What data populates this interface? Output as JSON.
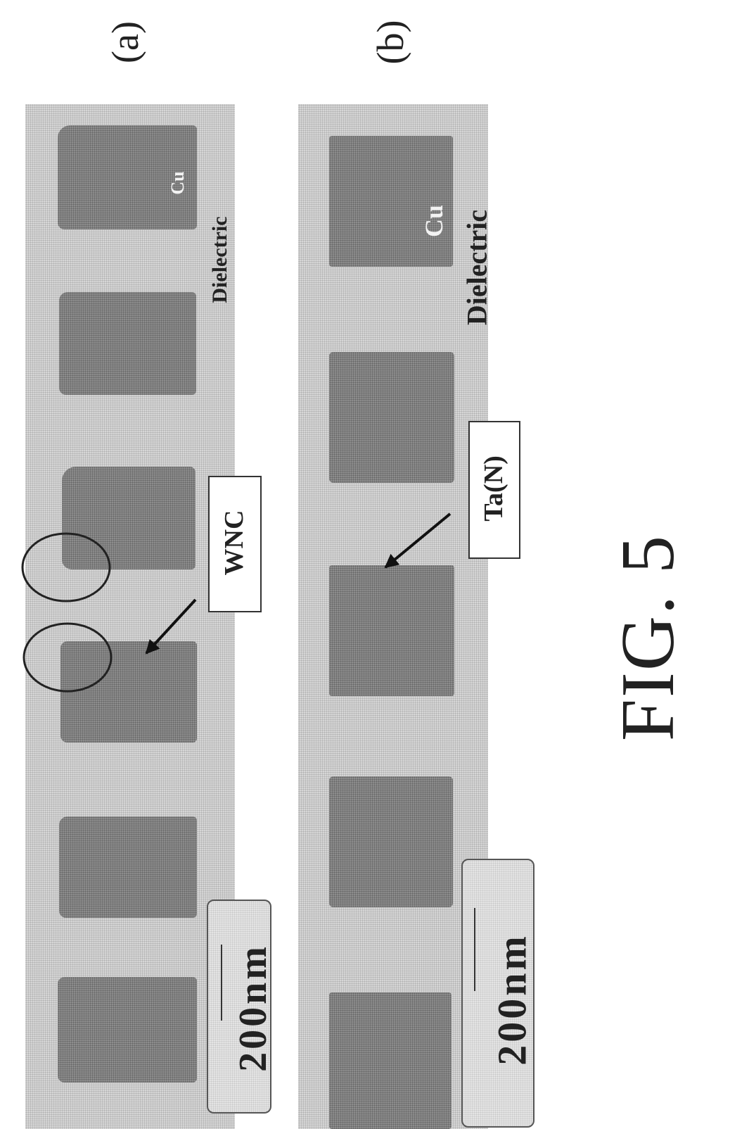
{
  "figure_title": "FIG. 5",
  "panels": [
    {
      "id": "a",
      "label": "(a)",
      "cu_label": "Cu",
      "dielectric_label": "Dielectric",
      "callout_label": "WNC",
      "scale_label": "200nm"
    },
    {
      "id": "b",
      "label": "(b)",
      "cu_label": "Cu",
      "dielectric_label": "Dielectric",
      "callout_label": "Ta(N)",
      "scale_label": "200nm"
    }
  ],
  "colors": {
    "dielectric_background": "#d6d6d6",
    "copper_block": "#8c8c8c",
    "ink": "#222222"
  }
}
